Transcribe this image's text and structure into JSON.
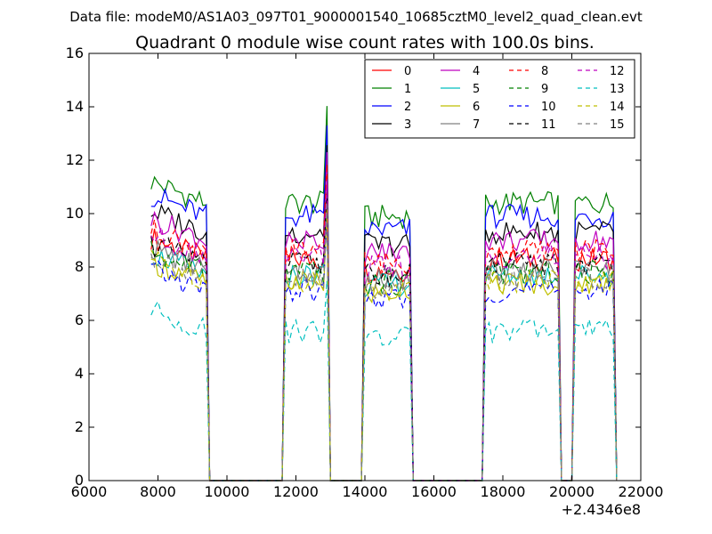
{
  "header": "Data file: modeM0/AS1A03_097T01_9000001540_10685cztM0_level2_quad_clean.evt",
  "chart_data": {
    "type": "line",
    "title": "Quadrant 0 module wise count rates with 100.0s bins.",
    "xlabel": "",
    "ylabel": "",
    "x_offset_label": "+2.4346e8",
    "xlim": [
      6000,
      22000
    ],
    "ylim": [
      0,
      16
    ],
    "x_ticks": [
      6000,
      8000,
      10000,
      12000,
      14000,
      16000,
      18000,
      20000,
      22000
    ],
    "y_ticks": [
      0,
      2,
      4,
      6,
      8,
      10,
      12,
      14,
      16
    ],
    "grid": false,
    "legend_position": "top-right",
    "legend_columns": 4,
    "bin_seconds": 100,
    "x_start": 7800,
    "x_step": 100,
    "segments": [
      {
        "start": 7800,
        "end": 9400,
        "plateau": 1.0
      },
      {
        "start": 11700,
        "end": 12900,
        "plateau": 1.0
      },
      {
        "start": 14000,
        "end": 15300,
        "plateau": 0.95
      },
      {
        "start": 17500,
        "end": 19600,
        "plateau": 1.0
      },
      {
        "start": 20100,
        "end": 21200,
        "plateau": 1.0
      }
    ],
    "spike": {
      "x": 12900,
      "factor": 1.35
    },
    "series": [
      {
        "name": "0",
        "color": "#ff0000",
        "dash": "solid",
        "base": 8.3
      },
      {
        "name": "1",
        "color": "#008000",
        "dash": "solid",
        "base": 10.4
      },
      {
        "name": "2",
        "color": "#0000ff",
        "dash": "solid",
        "base": 9.9
      },
      {
        "name": "3",
        "color": "#000000",
        "dash": "solid",
        "base": 9.3
      },
      {
        "name": "4",
        "color": "#bf00bf",
        "dash": "solid",
        "base": 9.0
      },
      {
        "name": "5",
        "color": "#00bfbf",
        "dash": "solid",
        "base": 7.7
      },
      {
        "name": "6",
        "color": "#bfbf00",
        "dash": "solid",
        "base": 7.4
      },
      {
        "name": "7",
        "color": "#808080",
        "dash": "solid",
        "base": 7.9
      },
      {
        "name": "8",
        "color": "#ff0000",
        "dash": "dashed",
        "base": 8.6
      },
      {
        "name": "9",
        "color": "#008000",
        "dash": "dashed",
        "base": 7.8
      },
      {
        "name": "10",
        "color": "#0000ff",
        "dash": "dashed",
        "base": 7.1
      },
      {
        "name": "11",
        "color": "#000000",
        "dash": "dashed",
        "base": 8.1
      },
      {
        "name": "12",
        "color": "#bf00bf",
        "dash": "dashed",
        "base": 8.4
      },
      {
        "name": "13",
        "color": "#00bfbf",
        "dash": "dashed",
        "base": 5.6
      },
      {
        "name": "14",
        "color": "#bfbf00",
        "dash": "dashed",
        "base": 7.5
      },
      {
        "name": "15",
        "color": "#808080",
        "dash": "dashed",
        "base": 7.6
      }
    ]
  }
}
